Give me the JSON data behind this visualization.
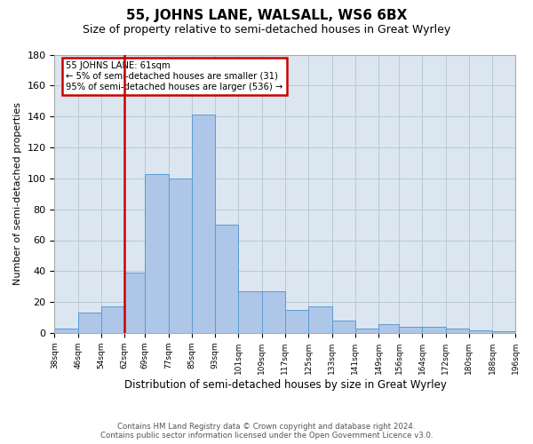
{
  "title": "55, JOHNS LANE, WALSALL, WS6 6BX",
  "subtitle": "Size of property relative to semi-detached houses in Great Wyrley",
  "xlabel": "Distribution of semi-detached houses by size in Great Wyrley",
  "ylabel": "Number of semi-detached properties",
  "footer_line1": "Contains HM Land Registry data © Crown copyright and database right 2024.",
  "footer_line2": "Contains public sector information licensed under the Open Government Licence v3.0.",
  "annotation_line1": "55 JOHNS LANE: 61sqm",
  "annotation_line2": "← 5% of semi-detached houses are smaller (31)",
  "annotation_line3": "95% of semi-detached houses are larger (536) →",
  "property_line_x": 62,
  "bar_edges": [
    38,
    46,
    54,
    62,
    69,
    77,
    85,
    93,
    101,
    109,
    117,
    125,
    133,
    141,
    149,
    156,
    164,
    172,
    180,
    188,
    196
  ],
  "bar_heights": [
    3,
    13,
    17,
    39,
    103,
    100,
    141,
    70,
    27,
    27,
    15,
    17,
    8,
    3,
    6,
    4,
    4,
    3,
    2,
    1
  ],
  "tick_labels": [
    "38sqm",
    "46sqm",
    "54sqm",
    "62sqm",
    "69sqm",
    "77sqm",
    "85sqm",
    "93sqm",
    "101sqm",
    "109sqm",
    "117sqm",
    "125sqm",
    "133sqm",
    "141sqm",
    "149sqm",
    "156sqm",
    "164sqm",
    "172sqm",
    "180sqm",
    "188sqm",
    "196sqm"
  ],
  "bar_color": "#aec6e8",
  "bar_edgecolor": "#5b9bd5",
  "vline_color": "#cc0000",
  "annotation_box_edgecolor": "#cc0000",
  "background_color": "#ffffff",
  "axes_facecolor": "#dce6f1",
  "grid_color": "#b8c8d8",
  "ylim": [
    0,
    180
  ],
  "yticks": [
    0,
    20,
    40,
    60,
    80,
    100,
    120,
    140,
    160,
    180
  ]
}
